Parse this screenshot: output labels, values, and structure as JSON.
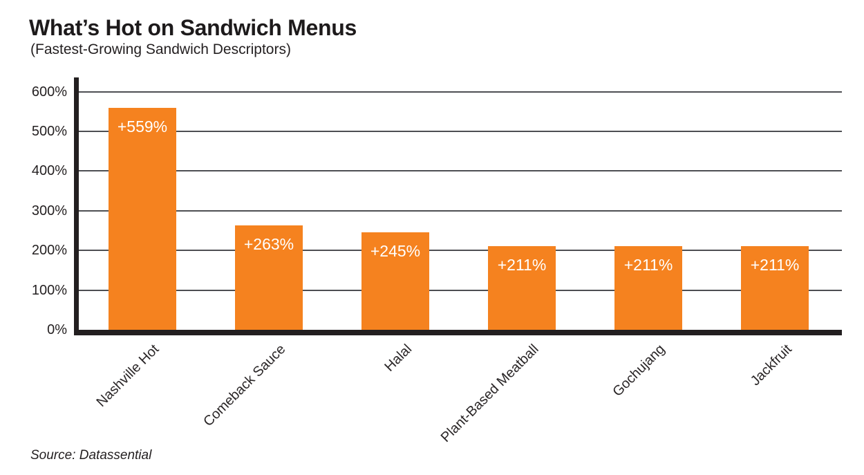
{
  "chart_data": {
    "type": "bar",
    "title": "What’s Hot on Sandwich Menus",
    "subtitle": "(Fastest-Growing Sandwich Descriptors)",
    "categories": [
      "Nashville Hot",
      "Comeback Sauce",
      "Halal",
      "Plant-Based Meatball",
      "Gochujang",
      "Jackfruit"
    ],
    "values": [
      559,
      263,
      245,
      211,
      211,
      211
    ],
    "bar_labels": [
      "+559%",
      "+263%",
      "+245%",
      "+211%",
      "+211%",
      "+211%"
    ],
    "xlabel": "",
    "ylabel": "",
    "ylim": [
      0,
      600
    ],
    "ytick_values": [
      0,
      100,
      200,
      300,
      400,
      500,
      600
    ],
    "ytick_labels": [
      "0%",
      "100%",
      "200%",
      "300%",
      "400%",
      "500%",
      "600%"
    ],
    "grid": "horizontal",
    "legend": "none",
    "bar_color": "#F5821F",
    "value_label_color": "#FFFFFF",
    "axis_color": "#231F20",
    "gridline_color": "#4D4E52",
    "source": "Source: Datassential"
  }
}
